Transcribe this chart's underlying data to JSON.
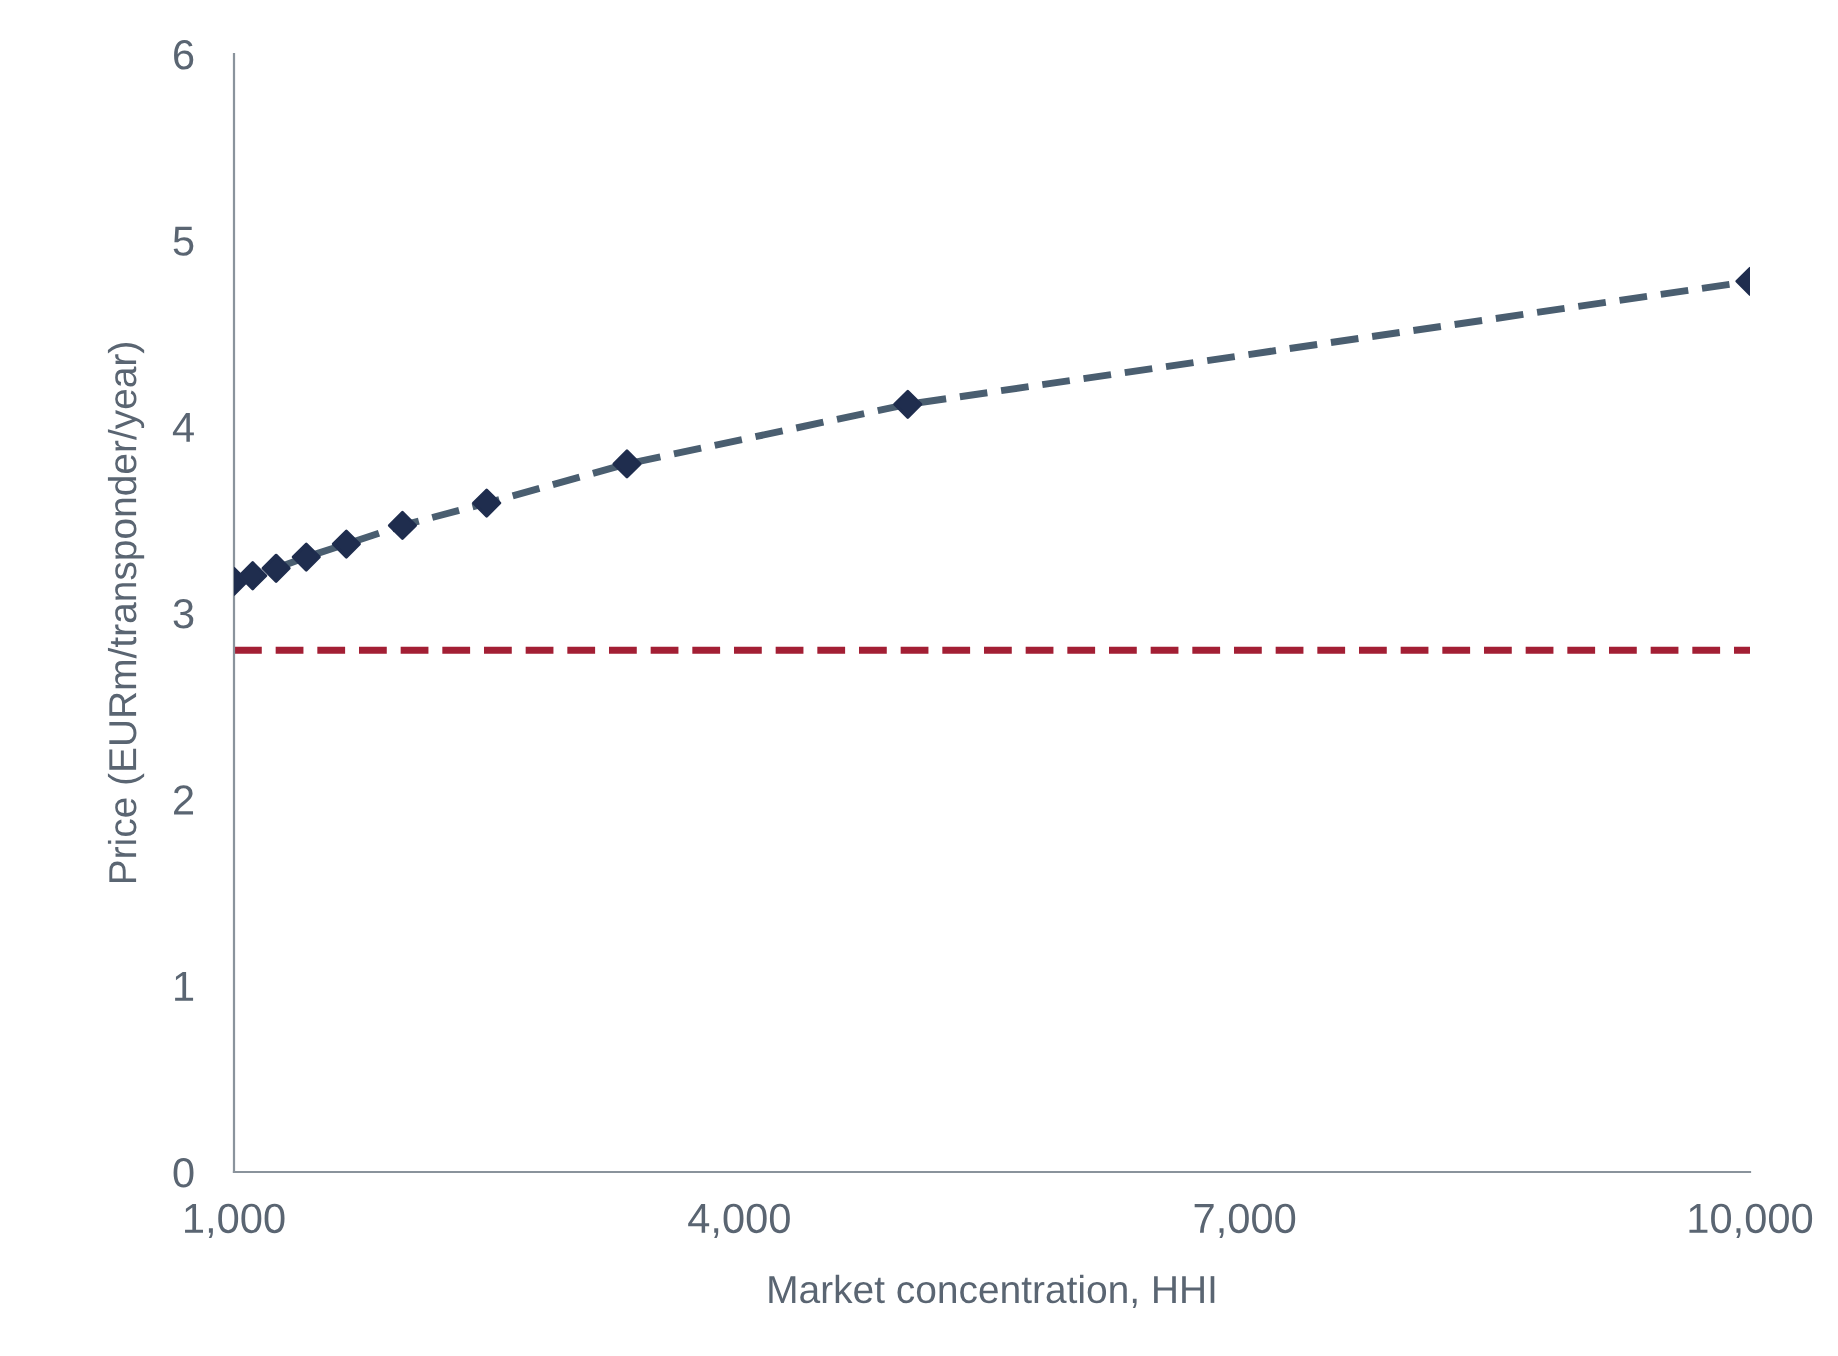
{
  "chart_data": {
    "type": "scatter",
    "xlabel": "Market concentration, HHI",
    "ylabel": "Price (EURm/transponder/year)",
    "xlim": [
      1000,
      10000
    ],
    "xticks": [
      {
        "value": 1000,
        "label": "1,000"
      },
      {
        "value": 4000,
        "label": "4,000"
      },
      {
        "value": 7000,
        "label": "7,000"
      },
      {
        "value": 10000,
        "label": "10,000"
      }
    ],
    "ylim": [
      0,
      6
    ],
    "yticks": [
      0,
      1,
      2,
      3,
      4,
      5,
      6
    ],
    "grid": false,
    "legend": false,
    "series": [
      {
        "type": "line",
        "color": "#4a5e70",
        "line_style": "dashed",
        "marker": "none",
        "x": [
          1000,
          1111,
          1250,
          1429,
          1667,
          2000,
          2500,
          3333,
          5000,
          10000
        ],
        "values": [
          3.17,
          3.2,
          3.24,
          3.3,
          3.37,
          3.47,
          3.59,
          3.8,
          4.12,
          4.78
        ]
      },
      {
        "color": "#1f2d4e",
        "marker": "diamond",
        "x": [
          1000,
          1111,
          1250,
          1429,
          1667,
          2000,
          2500,
          3333,
          5000,
          10000
        ],
        "values": [
          3.17,
          3.2,
          3.24,
          3.3,
          3.37,
          3.47,
          3.59,
          3.8,
          4.12,
          4.78
        ]
      }
    ],
    "ref_lines": [
      {
        "axis": "y",
        "value": 2.8,
        "color": "#a31f34",
        "line_style": "dashed"
      }
    ]
  }
}
